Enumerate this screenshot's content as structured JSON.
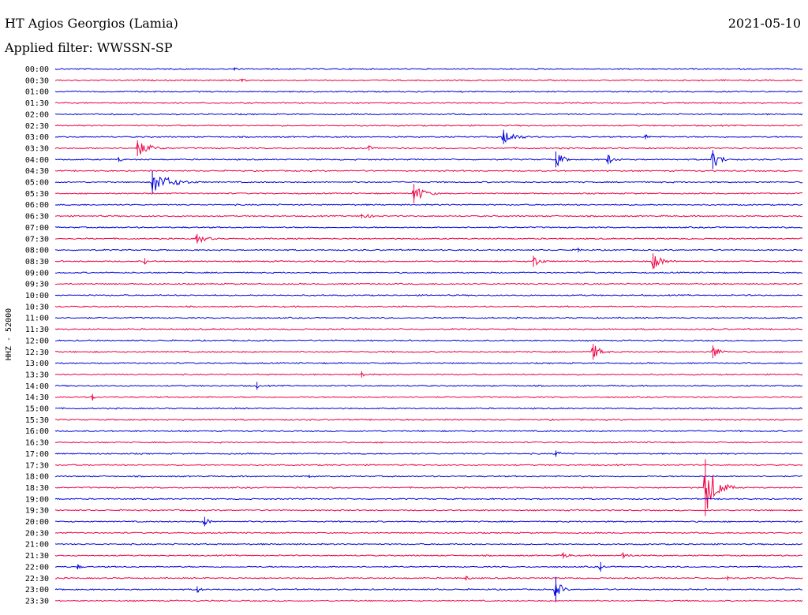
{
  "header": {
    "station": "HT Agios Georgios (Lamia)",
    "filter": "Applied filter: WWSSN-SP",
    "date": "2021-05-10"
  },
  "colors": {
    "even_row": "#0000dd",
    "odd_row": "#ee0044",
    "text": "#000000"
  },
  "chart_data": {
    "type": "line",
    "ylabel": "HHZ - 52000",
    "rows": [
      "00:00",
      "00:30",
      "01:00",
      "01:30",
      "02:00",
      "02:30",
      "03:00",
      "03:30",
      "04:00",
      "04:30",
      "05:00",
      "05:30",
      "06:00",
      "06:30",
      "07:00",
      "07:30",
      "08:00",
      "08:30",
      "09:00",
      "09:30",
      "10:00",
      "10:30",
      "11:00",
      "11:30",
      "12:00",
      "12:30",
      "13:00",
      "13:30",
      "14:00",
      "14:30",
      "15:00",
      "15:30",
      "16:00",
      "16:30",
      "17:00",
      "17:30",
      "18:00",
      "18:30",
      "19:00",
      "19:30",
      "20:00",
      "20:30",
      "21:00",
      "21:30",
      "22:00",
      "22:30",
      "23:00",
      "23:30"
    ],
    "events": [
      {
        "row": "00:00",
        "pos": 0.24,
        "amp": 2,
        "dur": 0.02
      },
      {
        "row": "00:30",
        "pos": 0.25,
        "amp": 2,
        "dur": 0.05
      },
      {
        "row": "03:00",
        "pos": 0.6,
        "amp": 9,
        "dur": 0.05
      },
      {
        "row": "03:00",
        "pos": 0.79,
        "amp": 3,
        "dur": 0.02
      },
      {
        "row": "03:30",
        "pos": 0.11,
        "amp": 10,
        "dur": 0.05
      },
      {
        "row": "03:30",
        "pos": 0.42,
        "amp": 3,
        "dur": 0.02
      },
      {
        "row": "04:00",
        "pos": 0.085,
        "amp": 3,
        "dur": 0.02
      },
      {
        "row": "04:00",
        "pos": 0.67,
        "amp": 10,
        "dur": 0.03
      },
      {
        "row": "04:00",
        "pos": 0.74,
        "amp": 6,
        "dur": 0.03
      },
      {
        "row": "04:00",
        "pos": 0.88,
        "amp": 12,
        "dur": 0.03
      },
      {
        "row": "05:00",
        "pos": 0.13,
        "amp": 14,
        "dur": 0.07
      },
      {
        "row": "05:30",
        "pos": 0.48,
        "amp": 12,
        "dur": 0.04
      },
      {
        "row": "06:30",
        "pos": 0.41,
        "amp": 3,
        "dur": 0.06
      },
      {
        "row": "07:30",
        "pos": 0.19,
        "amp": 6,
        "dur": 0.04
      },
      {
        "row": "08:00",
        "pos": 0.7,
        "amp": 3,
        "dur": 0.02
      },
      {
        "row": "08:30",
        "pos": 0.12,
        "amp": 4,
        "dur": 0.01
      },
      {
        "row": "08:30",
        "pos": 0.64,
        "amp": 7,
        "dur": 0.03
      },
      {
        "row": "08:30",
        "pos": 0.8,
        "amp": 10,
        "dur": 0.04
      },
      {
        "row": "12:30",
        "pos": 0.72,
        "amp": 10,
        "dur": 0.03
      },
      {
        "row": "12:30",
        "pos": 0.88,
        "amp": 8,
        "dur": 0.03
      },
      {
        "row": "13:30",
        "pos": 0.41,
        "amp": 4,
        "dur": 0.02
      },
      {
        "row": "14:00",
        "pos": 0.27,
        "amp": 5,
        "dur": 0.005
      },
      {
        "row": "14:30",
        "pos": 0.05,
        "amp": 4,
        "dur": 0.01
      },
      {
        "row": "17:00",
        "pos": 0.67,
        "amp": 4,
        "dur": 0.03
      },
      {
        "row": "18:00",
        "pos": 0.34,
        "amp": 2,
        "dur": 0.01
      },
      {
        "row": "18:30",
        "pos": 0.87,
        "amp": 36,
        "dur": 0.04
      },
      {
        "row": "20:00",
        "pos": 0.2,
        "amp": 6,
        "dur": 0.02
      },
      {
        "row": "21:30",
        "pos": 0.68,
        "amp": 4,
        "dur": 0.03
      },
      {
        "row": "21:30",
        "pos": 0.76,
        "amp": 4,
        "dur": 0.03
      },
      {
        "row": "22:00",
        "pos": 0.03,
        "amp": 3,
        "dur": 0.02
      },
      {
        "row": "22:00",
        "pos": 0.73,
        "amp": 6,
        "dur": 0.01
      },
      {
        "row": "22:30",
        "pos": 0.55,
        "amp": 3,
        "dur": 0.02
      },
      {
        "row": "22:30",
        "pos": 0.9,
        "amp": 3,
        "dur": 0.02
      },
      {
        "row": "23:00",
        "pos": 0.19,
        "amp": 4,
        "dur": 0.02
      },
      {
        "row": "23:00",
        "pos": 0.67,
        "amp": 16,
        "dur": 0.02
      }
    ]
  }
}
